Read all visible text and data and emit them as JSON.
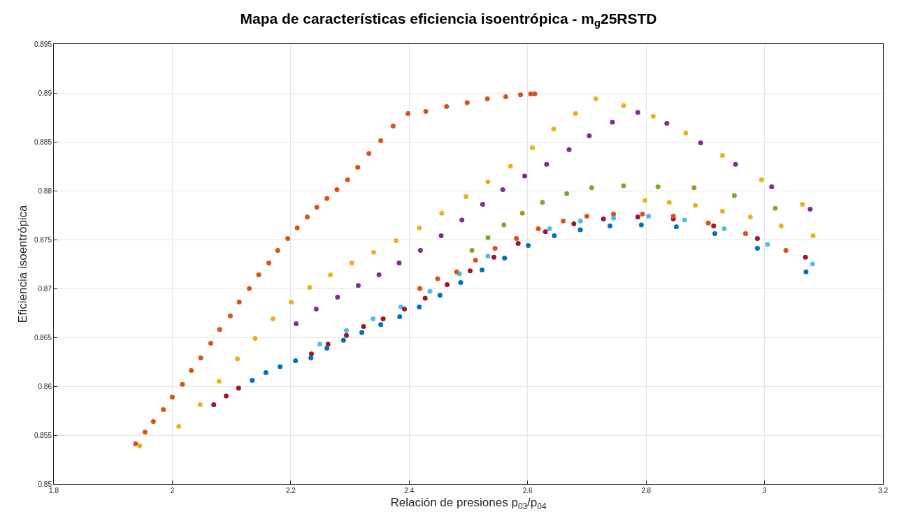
{
  "chart_data": {
    "type": "scatter",
    "title": "Mapa de características eficiencia isoentrópica - m$_{g}$25RSTD",
    "xlabel": "Relación de presiones p$_{03}$/p$_{04}$",
    "ylabel": "Eficiencia isoentrópica",
    "xlim": [
      1.8,
      3.2
    ],
    "xticks": [
      1.8,
      2,
      2.2,
      2.4,
      2.6,
      2.8,
      3,
      3.2
    ],
    "ylim": [
      0.85,
      0.895
    ],
    "yticks": [
      0.85,
      0.855,
      0.86,
      0.865,
      0.87,
      0.875,
      0.88,
      0.885,
      0.89,
      0.895
    ],
    "grid": true,
    "marker": "circle",
    "series": [
      {
        "color": "#D95319",
        "x": [
          1.938,
          1.954,
          1.968,
          1.985,
          2.0,
          2.017,
          2.032,
          2.048,
          2.065,
          2.08,
          2.098,
          2.113,
          2.13,
          2.146,
          2.163,
          2.178,
          2.195,
          2.211,
          2.228,
          2.244,
          2.261,
          2.278,
          2.296,
          2.313,
          2.332,
          2.352,
          2.373,
          2.398,
          2.428,
          2.463,
          2.498,
          2.532,
          2.563,
          2.588,
          2.605,
          2.612
        ],
        "values": [
          0.8541,
          0.8553,
          0.8564,
          0.8576,
          0.8589,
          0.8602,
          0.8616,
          0.8629,
          0.8644,
          0.8658,
          0.8672,
          0.8686,
          0.87,
          0.8714,
          0.8726,
          0.8739,
          0.8751,
          0.8762,
          0.8773,
          0.8783,
          0.8792,
          0.8801,
          0.8811,
          0.8824,
          0.8838,
          0.8851,
          0.8866,
          0.8879,
          0.8881,
          0.8886,
          0.889,
          0.8894,
          0.8896,
          0.8898,
          0.8899,
          0.8899
        ]
      },
      {
        "color": "#EDB120",
        "x": [
          1.945,
          2.011,
          2.047,
          2.079,
          2.11,
          2.14,
          2.17,
          2.201,
          2.232,
          2.267,
          2.303,
          2.34,
          2.378,
          2.417,
          2.455,
          2.496,
          2.533,
          2.571,
          2.608,
          2.644,
          2.681,
          2.715,
          2.762,
          2.812,
          2.867,
          2.929,
          2.995,
          3.064
        ],
        "values": [
          0.8539,
          0.8559,
          0.8581,
          0.8605,
          0.8628,
          0.8649,
          0.8669,
          0.8686,
          0.8701,
          0.8714,
          0.8726,
          0.8737,
          0.8749,
          0.8762,
          0.8777,
          0.8794,
          0.8809,
          0.8825,
          0.8844,
          0.8863,
          0.8879,
          0.8894,
          0.8887,
          0.8876,
          0.8859,
          0.8836,
          0.8811,
          0.8786
        ]
      },
      {
        "color": "#7E2F8E",
        "x": [
          2.209,
          2.243,
          2.279,
          2.314,
          2.349,
          2.383,
          2.419,
          2.454,
          2.489,
          2.524,
          2.558,
          2.595,
          2.632,
          2.67,
          2.704,
          2.743,
          2.786,
          2.835,
          2.892,
          2.951,
          3.012,
          3.077
        ],
        "values": [
          0.8664,
          0.8679,
          0.8691,
          0.8703,
          0.8714,
          0.8726,
          0.8739,
          0.8754,
          0.877,
          0.8786,
          0.8801,
          0.8815,
          0.8827,
          0.8842,
          0.8856,
          0.887,
          0.888,
          0.8869,
          0.8849,
          0.8827,
          0.8804,
          0.8781
        ]
      },
      {
        "color": "#77AC30",
        "x": [
          2.506,
          2.533,
          2.56,
          2.591,
          2.625,
          2.666,
          2.708,
          2.762,
          2.82,
          2.881,
          2.949,
          3.018
        ],
        "values": [
          0.8739,
          0.8752,
          0.8765,
          0.8777,
          0.8788,
          0.8797,
          0.8803,
          0.8805,
          0.8804,
          0.8803,
          0.8795,
          0.8782
        ]
      },
      {
        "color": "#4DBEEE",
        "x": [
          2.249,
          2.294,
          2.339,
          2.386,
          2.435,
          2.485,
          2.533,
          2.637,
          2.689,
          2.745,
          2.804,
          2.865,
          2.932,
          3.005,
          3.081
        ],
        "values": [
          0.8643,
          0.8657,
          0.8669,
          0.8681,
          0.8697,
          0.8715,
          0.8733,
          0.8761,
          0.8769,
          0.8772,
          0.8774,
          0.877,
          0.8761,
          0.8745,
          0.8725
        ]
      },
      {
        "color": "#A2142F",
        "x": [
          2.07,
          2.091,
          2.112,
          2.235,
          2.263,
          2.294,
          2.323,
          2.356,
          2.392,
          2.427,
          2.464,
          2.503,
          2.543,
          2.584,
          2.63,
          2.678,
          2.728,
          2.786,
          2.846,
          2.914,
          2.988,
          3.069
        ],
        "values": [
          0.8581,
          0.859,
          0.8598,
          0.8633,
          0.8643,
          0.8652,
          0.8661,
          0.8669,
          0.8679,
          0.869,
          0.8704,
          0.8718,
          0.8732,
          0.8746,
          0.8758,
          0.8766,
          0.8771,
          0.8773,
          0.8771,
          0.8764,
          0.8751,
          0.8732
        ]
      },
      {
        "color": "#0072BD",
        "x": [
          2.135,
          2.158,
          2.182,
          2.208,
          2.234,
          2.261,
          2.289,
          2.32,
          2.352,
          2.384,
          2.417,
          2.452,
          2.487,
          2.523,
          2.561,
          2.601,
          2.645,
          2.689,
          2.739,
          2.792,
          2.851,
          2.916,
          2.988,
          3.07
        ],
        "values": [
          0.8606,
          0.8614,
          0.862,
          0.8626,
          0.8629,
          0.8639,
          0.8647,
          0.8655,
          0.8663,
          0.8671,
          0.8681,
          0.8693,
          0.8706,
          0.8719,
          0.8731,
          0.8744,
          0.8754,
          0.876,
          0.8764,
          0.8765,
          0.8763,
          0.8756,
          0.8741,
          0.8717
        ]
      },
      {
        "color": "#D95319",
        "x": [
          2.418,
          2.448,
          2.48,
          2.512,
          2.545,
          2.581,
          2.618,
          2.66,
          2.7,
          2.745,
          2.794,
          2.846,
          2.905,
          2.968,
          3.036
        ],
        "values": [
          0.87,
          0.871,
          0.8717,
          0.8729,
          0.8741,
          0.8751,
          0.8761,
          0.8769,
          0.8774,
          0.8776,
          0.8776,
          0.8774,
          0.8767,
          0.8756,
          0.8739
        ]
      },
      {
        "color": "#EDB120",
        "x": [
          2.798,
          2.839,
          2.883,
          2.929,
          2.976,
          3.028,
          3.082
        ],
        "values": [
          0.879,
          0.8788,
          0.8785,
          0.8779,
          0.8773,
          0.8764,
          0.8754
        ]
      }
    ]
  }
}
